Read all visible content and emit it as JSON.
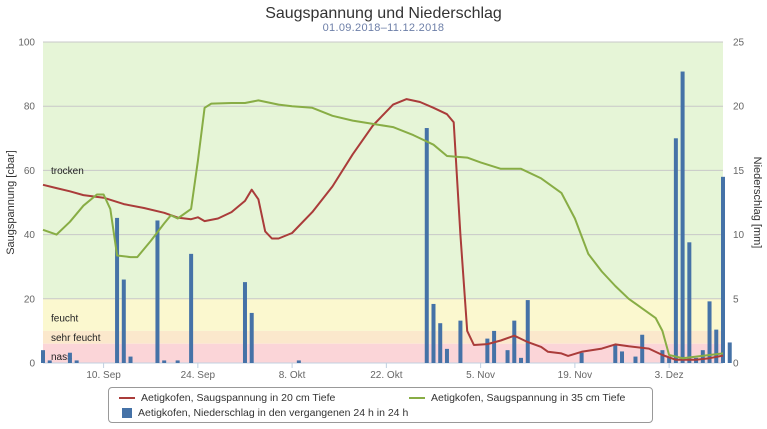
{
  "chart_data": {
    "type": "bar-line-combo",
    "title": "Saugspannung und Niederschlag",
    "subtitle": "01.09.2018–11.12.2018",
    "x_range": [
      "2018-09-01",
      "2018-12-11"
    ],
    "x_ticks": [
      {
        "date": "2018-09-10",
        "label": "10. Sep"
      },
      {
        "date": "2018-09-24",
        "label": "24. Sep"
      },
      {
        "date": "2018-10-08",
        "label": "8. Okt"
      },
      {
        "date": "2018-10-22",
        "label": "22. Okt"
      },
      {
        "date": "2018-11-05",
        "label": "5. Nov"
      },
      {
        "date": "2018-11-19",
        "label": "19. Nov"
      },
      {
        "date": "2018-12-03",
        "label": "3. Dez"
      }
    ],
    "y_left": {
      "label": "Saugspannung [cbar]",
      "range": [
        0,
        100
      ],
      "ticks": [
        0,
        20,
        40,
        60,
        80,
        100
      ]
    },
    "y_right": {
      "label": "Niederschlag [mm]",
      "range": [
        0,
        25
      ],
      "ticks": [
        0,
        5,
        10,
        15,
        20,
        25
      ]
    },
    "bands": [
      {
        "label": "trocken",
        "from": 20,
        "to": 100,
        "color": "#e6f5d7"
      },
      {
        "label": "feucht",
        "from": 10,
        "to": 20,
        "color": "#fbf8cf"
      },
      {
        "label": "sehr feucht",
        "from": 6,
        "to": 10,
        "color": "#fbe8cc"
      },
      {
        "label": "nass",
        "from": 0,
        "to": 6,
        "color": "#fbd5d8"
      }
    ],
    "band_label_values": [
      60,
      14,
      8,
      2
    ],
    "series": [
      {
        "name": "Aetigkofen, Saugspannung in 20 cm Tiefe",
        "type": "line",
        "axis": "left",
        "color": "#aa3c3a",
        "points": [
          [
            "2018-09-01",
            55.5
          ],
          [
            "2018-09-03",
            54.5
          ],
          [
            "2018-09-05",
            53.5
          ],
          [
            "2018-09-07",
            52.3
          ],
          [
            "2018-09-10",
            51.5
          ],
          [
            "2018-09-13",
            49.5
          ],
          [
            "2018-09-16",
            48.3
          ],
          [
            "2018-09-19",
            46.8
          ],
          [
            "2018-09-21",
            45.3
          ],
          [
            "2018-09-23",
            44.8
          ],
          [
            "2018-09-24",
            45.4
          ],
          [
            "2018-09-25",
            44.2
          ],
          [
            "2018-09-27",
            45.0
          ],
          [
            "2018-09-29",
            47.0
          ],
          [
            "2018-10-01",
            50.5
          ],
          [
            "2018-10-02",
            54.0
          ],
          [
            "2018-10-03",
            51.0
          ],
          [
            "2018-10-04",
            41.0
          ],
          [
            "2018-10-05",
            38.8
          ],
          [
            "2018-10-06",
            38.8
          ],
          [
            "2018-10-08",
            40.5
          ],
          [
            "2018-10-11",
            47.0
          ],
          [
            "2018-10-14",
            55.0
          ],
          [
            "2018-10-17",
            65.0
          ],
          [
            "2018-10-20",
            74.0
          ],
          [
            "2018-10-23",
            80.5
          ],
          [
            "2018-10-25",
            82.2
          ],
          [
            "2018-10-27",
            81.3
          ],
          [
            "2018-10-29",
            79.5
          ],
          [
            "2018-10-31",
            77.5
          ],
          [
            "2018-11-01",
            75.0
          ],
          [
            "2018-11-02",
            40.0
          ],
          [
            "2018-11-03",
            10.0
          ],
          [
            "2018-11-04",
            5.6
          ],
          [
            "2018-11-06",
            5.9
          ],
          [
            "2018-11-08",
            7.0
          ],
          [
            "2018-11-10",
            8.5
          ],
          [
            "2018-11-11",
            7.5
          ],
          [
            "2018-11-12",
            6.5
          ],
          [
            "2018-11-14",
            5.0
          ],
          [
            "2018-11-15",
            3.5
          ],
          [
            "2018-11-17",
            3.0
          ],
          [
            "2018-11-18",
            2.2
          ],
          [
            "2018-11-20",
            3.5
          ],
          [
            "2018-11-23",
            4.5
          ],
          [
            "2018-11-25",
            5.8
          ],
          [
            "2018-11-27",
            5.2
          ],
          [
            "2018-11-30",
            4.5
          ],
          [
            "2018-12-02",
            2.5
          ],
          [
            "2018-12-04",
            1.0
          ],
          [
            "2018-12-07",
            1.0
          ],
          [
            "2018-12-09",
            1.5
          ],
          [
            "2018-12-11",
            2.3
          ]
        ]
      },
      {
        "name": "Aetigkofen, Saugspannung in 35 cm Tiefe",
        "type": "line",
        "axis": "left",
        "color": "#88ad45",
        "points": [
          [
            "2018-09-01",
            41.5
          ],
          [
            "2018-09-03",
            40.0
          ],
          [
            "2018-09-05",
            44.0
          ],
          [
            "2018-09-07",
            49.0
          ],
          [
            "2018-09-09",
            52.5
          ],
          [
            "2018-09-10",
            52.5
          ],
          [
            "2018-09-11",
            48.0
          ],
          [
            "2018-09-12",
            33.5
          ],
          [
            "2018-09-14",
            33.0
          ],
          [
            "2018-09-15",
            33.0
          ],
          [
            "2018-09-17",
            38.0
          ],
          [
            "2018-09-19",
            43.5
          ],
          [
            "2018-09-20",
            46.0
          ],
          [
            "2018-09-21",
            45.0
          ],
          [
            "2018-09-23",
            48.0
          ],
          [
            "2018-09-24",
            63.0
          ],
          [
            "2018-09-25",
            79.5
          ],
          [
            "2018-09-26",
            80.8
          ],
          [
            "2018-09-29",
            81.0
          ],
          [
            "2018-10-01",
            81.0
          ],
          [
            "2018-10-03",
            81.8
          ],
          [
            "2018-10-06",
            80.5
          ],
          [
            "2018-10-08",
            80.0
          ],
          [
            "2018-10-11",
            79.5
          ],
          [
            "2018-10-14",
            77.0
          ],
          [
            "2018-10-17",
            75.5
          ],
          [
            "2018-10-20",
            74.5
          ],
          [
            "2018-10-23",
            73.5
          ],
          [
            "2018-10-26",
            71.0
          ],
          [
            "2018-10-29",
            68.0
          ],
          [
            "2018-10-31",
            64.5
          ],
          [
            "2018-11-03",
            64.0
          ],
          [
            "2018-11-05",
            62.5
          ],
          [
            "2018-11-08",
            60.5
          ],
          [
            "2018-11-11",
            60.5
          ],
          [
            "2018-11-14",
            57.5
          ],
          [
            "2018-11-17",
            53.0
          ],
          [
            "2018-11-19",
            45.0
          ],
          [
            "2018-11-21",
            34.0
          ],
          [
            "2018-11-23",
            28.5
          ],
          [
            "2018-11-25",
            24.0
          ],
          [
            "2018-11-27",
            20.0
          ],
          [
            "2018-11-29",
            17.0
          ],
          [
            "2018-12-01",
            14.0
          ],
          [
            "2018-12-02",
            10.0
          ],
          [
            "2018-12-03",
            2.5
          ],
          [
            "2018-12-05",
            1.5
          ],
          [
            "2018-12-07",
            2.0
          ],
          [
            "2018-12-09",
            2.5
          ],
          [
            "2018-12-11",
            3.0
          ]
        ]
      },
      {
        "name": "Aetigkofen, Niederschlag in den vergangenen 24 h in 24 h",
        "type": "bar",
        "axis": "right",
        "color": "#4572a7",
        "points": [
          [
            "2018-09-01",
            1.0
          ],
          [
            "2018-09-02",
            0.2
          ],
          [
            "2018-09-05",
            0.8
          ],
          [
            "2018-09-06",
            0.2
          ],
          [
            "2018-09-12",
            11.3
          ],
          [
            "2018-09-13",
            6.5
          ],
          [
            "2018-09-14",
            0.5
          ],
          [
            "2018-09-18",
            11.1
          ],
          [
            "2018-09-19",
            0.2
          ],
          [
            "2018-09-21",
            0.2
          ],
          [
            "2018-09-23",
            8.5
          ],
          [
            "2018-10-01",
            6.3
          ],
          [
            "2018-10-02",
            3.9
          ],
          [
            "2018-10-09",
            0.2
          ],
          [
            "2018-10-28",
            18.3
          ],
          [
            "2018-10-29",
            4.6
          ],
          [
            "2018-10-30",
            3.1
          ],
          [
            "2018-10-31",
            1.1
          ],
          [
            "2018-11-02",
            3.3
          ],
          [
            "2018-11-06",
            1.9
          ],
          [
            "2018-11-07",
            2.5
          ],
          [
            "2018-11-09",
            1.0
          ],
          [
            "2018-11-10",
            3.3
          ],
          [
            "2018-11-11",
            0.4
          ],
          [
            "2018-11-12",
            4.9
          ],
          [
            "2018-11-20",
            0.8
          ],
          [
            "2018-11-25",
            1.4
          ],
          [
            "2018-11-26",
            0.9
          ],
          [
            "2018-11-28",
            0.5
          ],
          [
            "2018-11-29",
            2.2
          ],
          [
            "2018-12-02",
            1.0
          ],
          [
            "2018-12-03",
            0.5
          ],
          [
            "2018-12-04",
            17.5
          ],
          [
            "2018-12-05",
            22.7
          ],
          [
            "2018-12-06",
            9.4
          ],
          [
            "2018-12-07",
            0.4
          ],
          [
            "2018-12-08",
            1.0
          ],
          [
            "2018-12-09",
            4.8
          ],
          [
            "2018-12-10",
            2.6
          ],
          [
            "2018-12-11",
            14.5
          ],
          [
            "2018-12-12",
            1.6
          ]
        ]
      }
    ],
    "legend_position": "bottom-center"
  }
}
